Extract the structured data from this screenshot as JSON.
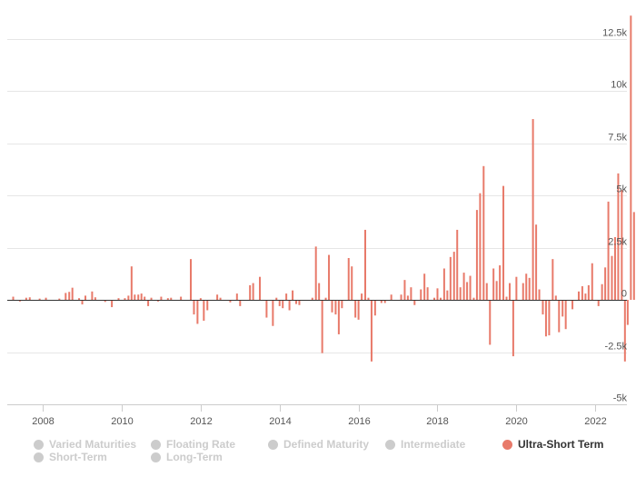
{
  "chart_data": {
    "type": "bar",
    "title": "",
    "xlabel": "",
    "ylabel": "",
    "x_range": [
      2007.1,
      2022.8
    ],
    "ylim": [
      -5000,
      14000
    ],
    "y_ticks": [
      -5000,
      -2500,
      0,
      2500,
      5000,
      7500,
      10000,
      12500
    ],
    "y_tick_labels": [
      "-5k",
      "-2.5k",
      "0",
      "2.5k",
      "5k",
      "7.5k",
      "10k",
      "12.5k"
    ],
    "x_ticks": [
      2008,
      2010,
      2012,
      2014,
      2016,
      2018,
      2020,
      2022
    ],
    "x_tick_labels": [
      "2008",
      "2010",
      "2012",
      "2014",
      "2016",
      "2018",
      "2020",
      "2022"
    ],
    "grid": true,
    "legend_position": "bottom",
    "series": [
      {
        "name": "Ultra-Short Term",
        "color": "#e87a6a",
        "points": [
          [
            2007.25,
            150
          ],
          [
            2007.42,
            -80
          ],
          [
            2007.58,
            100
          ],
          [
            2007.67,
            120
          ],
          [
            2007.92,
            60
          ],
          [
            2008.08,
            100
          ],
          [
            2008.42,
            60
          ],
          [
            2008.58,
            330
          ],
          [
            2008.67,
            380
          ],
          [
            2008.75,
            580
          ],
          [
            2008.92,
            80
          ],
          [
            2009.0,
            -220
          ],
          [
            2009.08,
            200
          ],
          [
            2009.25,
            400
          ],
          [
            2009.33,
            120
          ],
          [
            2009.58,
            -100
          ],
          [
            2009.75,
            -350
          ],
          [
            2009.92,
            80
          ],
          [
            2010.08,
            80
          ],
          [
            2010.17,
            200
          ],
          [
            2010.25,
            1600
          ],
          [
            2010.33,
            250
          ],
          [
            2010.42,
            250
          ],
          [
            2010.5,
            300
          ],
          [
            2010.58,
            150
          ],
          [
            2010.67,
            -300
          ],
          [
            2010.75,
            100
          ],
          [
            2010.92,
            -80
          ],
          [
            2011.0,
            150
          ],
          [
            2011.17,
            80
          ],
          [
            2011.25,
            100
          ],
          [
            2011.5,
            150
          ],
          [
            2011.75,
            1950
          ],
          [
            2011.83,
            -700
          ],
          [
            2011.92,
            -1150
          ],
          [
            2012.0,
            80
          ],
          [
            2012.08,
            -1000
          ],
          [
            2012.17,
            -500
          ],
          [
            2012.42,
            250
          ],
          [
            2012.5,
            100
          ],
          [
            2012.75,
            -120
          ],
          [
            2012.92,
            300
          ],
          [
            2013.0,
            -300
          ],
          [
            2013.25,
            700
          ],
          [
            2013.33,
            800
          ],
          [
            2013.5,
            1100
          ],
          [
            2013.67,
            -850
          ],
          [
            2013.83,
            -1250
          ],
          [
            2013.92,
            100
          ],
          [
            2014.0,
            -300
          ],
          [
            2014.08,
            -400
          ],
          [
            2014.17,
            300
          ],
          [
            2014.25,
            -500
          ],
          [
            2014.33,
            450
          ],
          [
            2014.42,
            -200
          ],
          [
            2014.5,
            -250
          ],
          [
            2014.83,
            100
          ],
          [
            2014.92,
            2550
          ],
          [
            2015.0,
            800
          ],
          [
            2015.08,
            -2550
          ],
          [
            2015.17,
            100
          ],
          [
            2015.25,
            2150
          ],
          [
            2015.33,
            -600
          ],
          [
            2015.42,
            -700
          ],
          [
            2015.5,
            -1650
          ],
          [
            2015.58,
            -400
          ],
          [
            2015.75,
            2000
          ],
          [
            2015.83,
            1600
          ],
          [
            2015.92,
            -850
          ],
          [
            2016.0,
            -950
          ],
          [
            2016.08,
            300
          ],
          [
            2016.17,
            3350
          ],
          [
            2016.25,
            100
          ],
          [
            2016.33,
            -2950
          ],
          [
            2016.42,
            -750
          ],
          [
            2016.58,
            -150
          ],
          [
            2016.67,
            -150
          ],
          [
            2016.83,
            250
          ],
          [
            2017.08,
            250
          ],
          [
            2017.17,
            950
          ],
          [
            2017.25,
            200
          ],
          [
            2017.33,
            600
          ],
          [
            2017.42,
            -250
          ],
          [
            2017.58,
            500
          ],
          [
            2017.67,
            1250
          ],
          [
            2017.75,
            600
          ],
          [
            2017.92,
            100
          ],
          [
            2018.0,
            550
          ],
          [
            2018.08,
            100
          ],
          [
            2018.17,
            1500
          ],
          [
            2018.25,
            450
          ],
          [
            2018.33,
            2050
          ],
          [
            2018.42,
            2300
          ],
          [
            2018.5,
            3350
          ],
          [
            2018.58,
            600
          ],
          [
            2018.67,
            1300
          ],
          [
            2018.75,
            850
          ],
          [
            2018.83,
            1150
          ],
          [
            2018.92,
            100
          ],
          [
            2019.0,
            4300
          ],
          [
            2019.08,
            5100
          ],
          [
            2019.17,
            6400
          ],
          [
            2019.25,
            800
          ],
          [
            2019.33,
            -2150
          ],
          [
            2019.42,
            1500
          ],
          [
            2019.5,
            900
          ],
          [
            2019.58,
            1650
          ],
          [
            2019.67,
            5450
          ],
          [
            2019.75,
            150
          ],
          [
            2019.83,
            800
          ],
          [
            2019.92,
            -2700
          ],
          [
            2020.0,
            1100
          ],
          [
            2020.17,
            800
          ],
          [
            2020.25,
            1250
          ],
          [
            2020.33,
            1050
          ],
          [
            2020.42,
            8650
          ],
          [
            2020.5,
            3600
          ],
          [
            2020.58,
            500
          ],
          [
            2020.67,
            -700
          ],
          [
            2020.75,
            -1750
          ],
          [
            2020.83,
            -1700
          ],
          [
            2020.92,
            1950
          ],
          [
            2021.0,
            200
          ],
          [
            2021.08,
            -1550
          ],
          [
            2021.17,
            -800
          ],
          [
            2021.25,
            -1400
          ],
          [
            2021.42,
            -450
          ],
          [
            2021.58,
            400
          ],
          [
            2021.67,
            650
          ],
          [
            2021.75,
            300
          ],
          [
            2021.83,
            700
          ],
          [
            2021.92,
            1750
          ],
          [
            2022.08,
            -300
          ],
          [
            2022.17,
            750
          ],
          [
            2022.25,
            1550
          ],
          [
            2022.33,
            4700
          ],
          [
            2022.42,
            2100
          ],
          [
            2022.5,
            3000
          ],
          [
            2022.58,
            6050
          ],
          [
            2022.67,
            5250
          ],
          [
            2022.75,
            -2950
          ],
          [
            2022.82,
            -1200
          ],
          [
            2022.9,
            13600
          ],
          [
            2022.98,
            4200
          ]
        ]
      }
    ]
  },
  "legend": {
    "items": [
      {
        "label": "Varied Maturities",
        "active": false
      },
      {
        "label": "Floating Rate",
        "active": false
      },
      {
        "label": "Defined Maturity",
        "active": false
      },
      {
        "label": "Intermediate",
        "active": false
      },
      {
        "label": "Ultra-Short Term",
        "active": true
      },
      {
        "label": "Short-Term",
        "active": false
      },
      {
        "label": "Long-Term",
        "active": false
      }
    ],
    "inactive_color": "#cccccc",
    "active_color": "#e87a6a"
  }
}
